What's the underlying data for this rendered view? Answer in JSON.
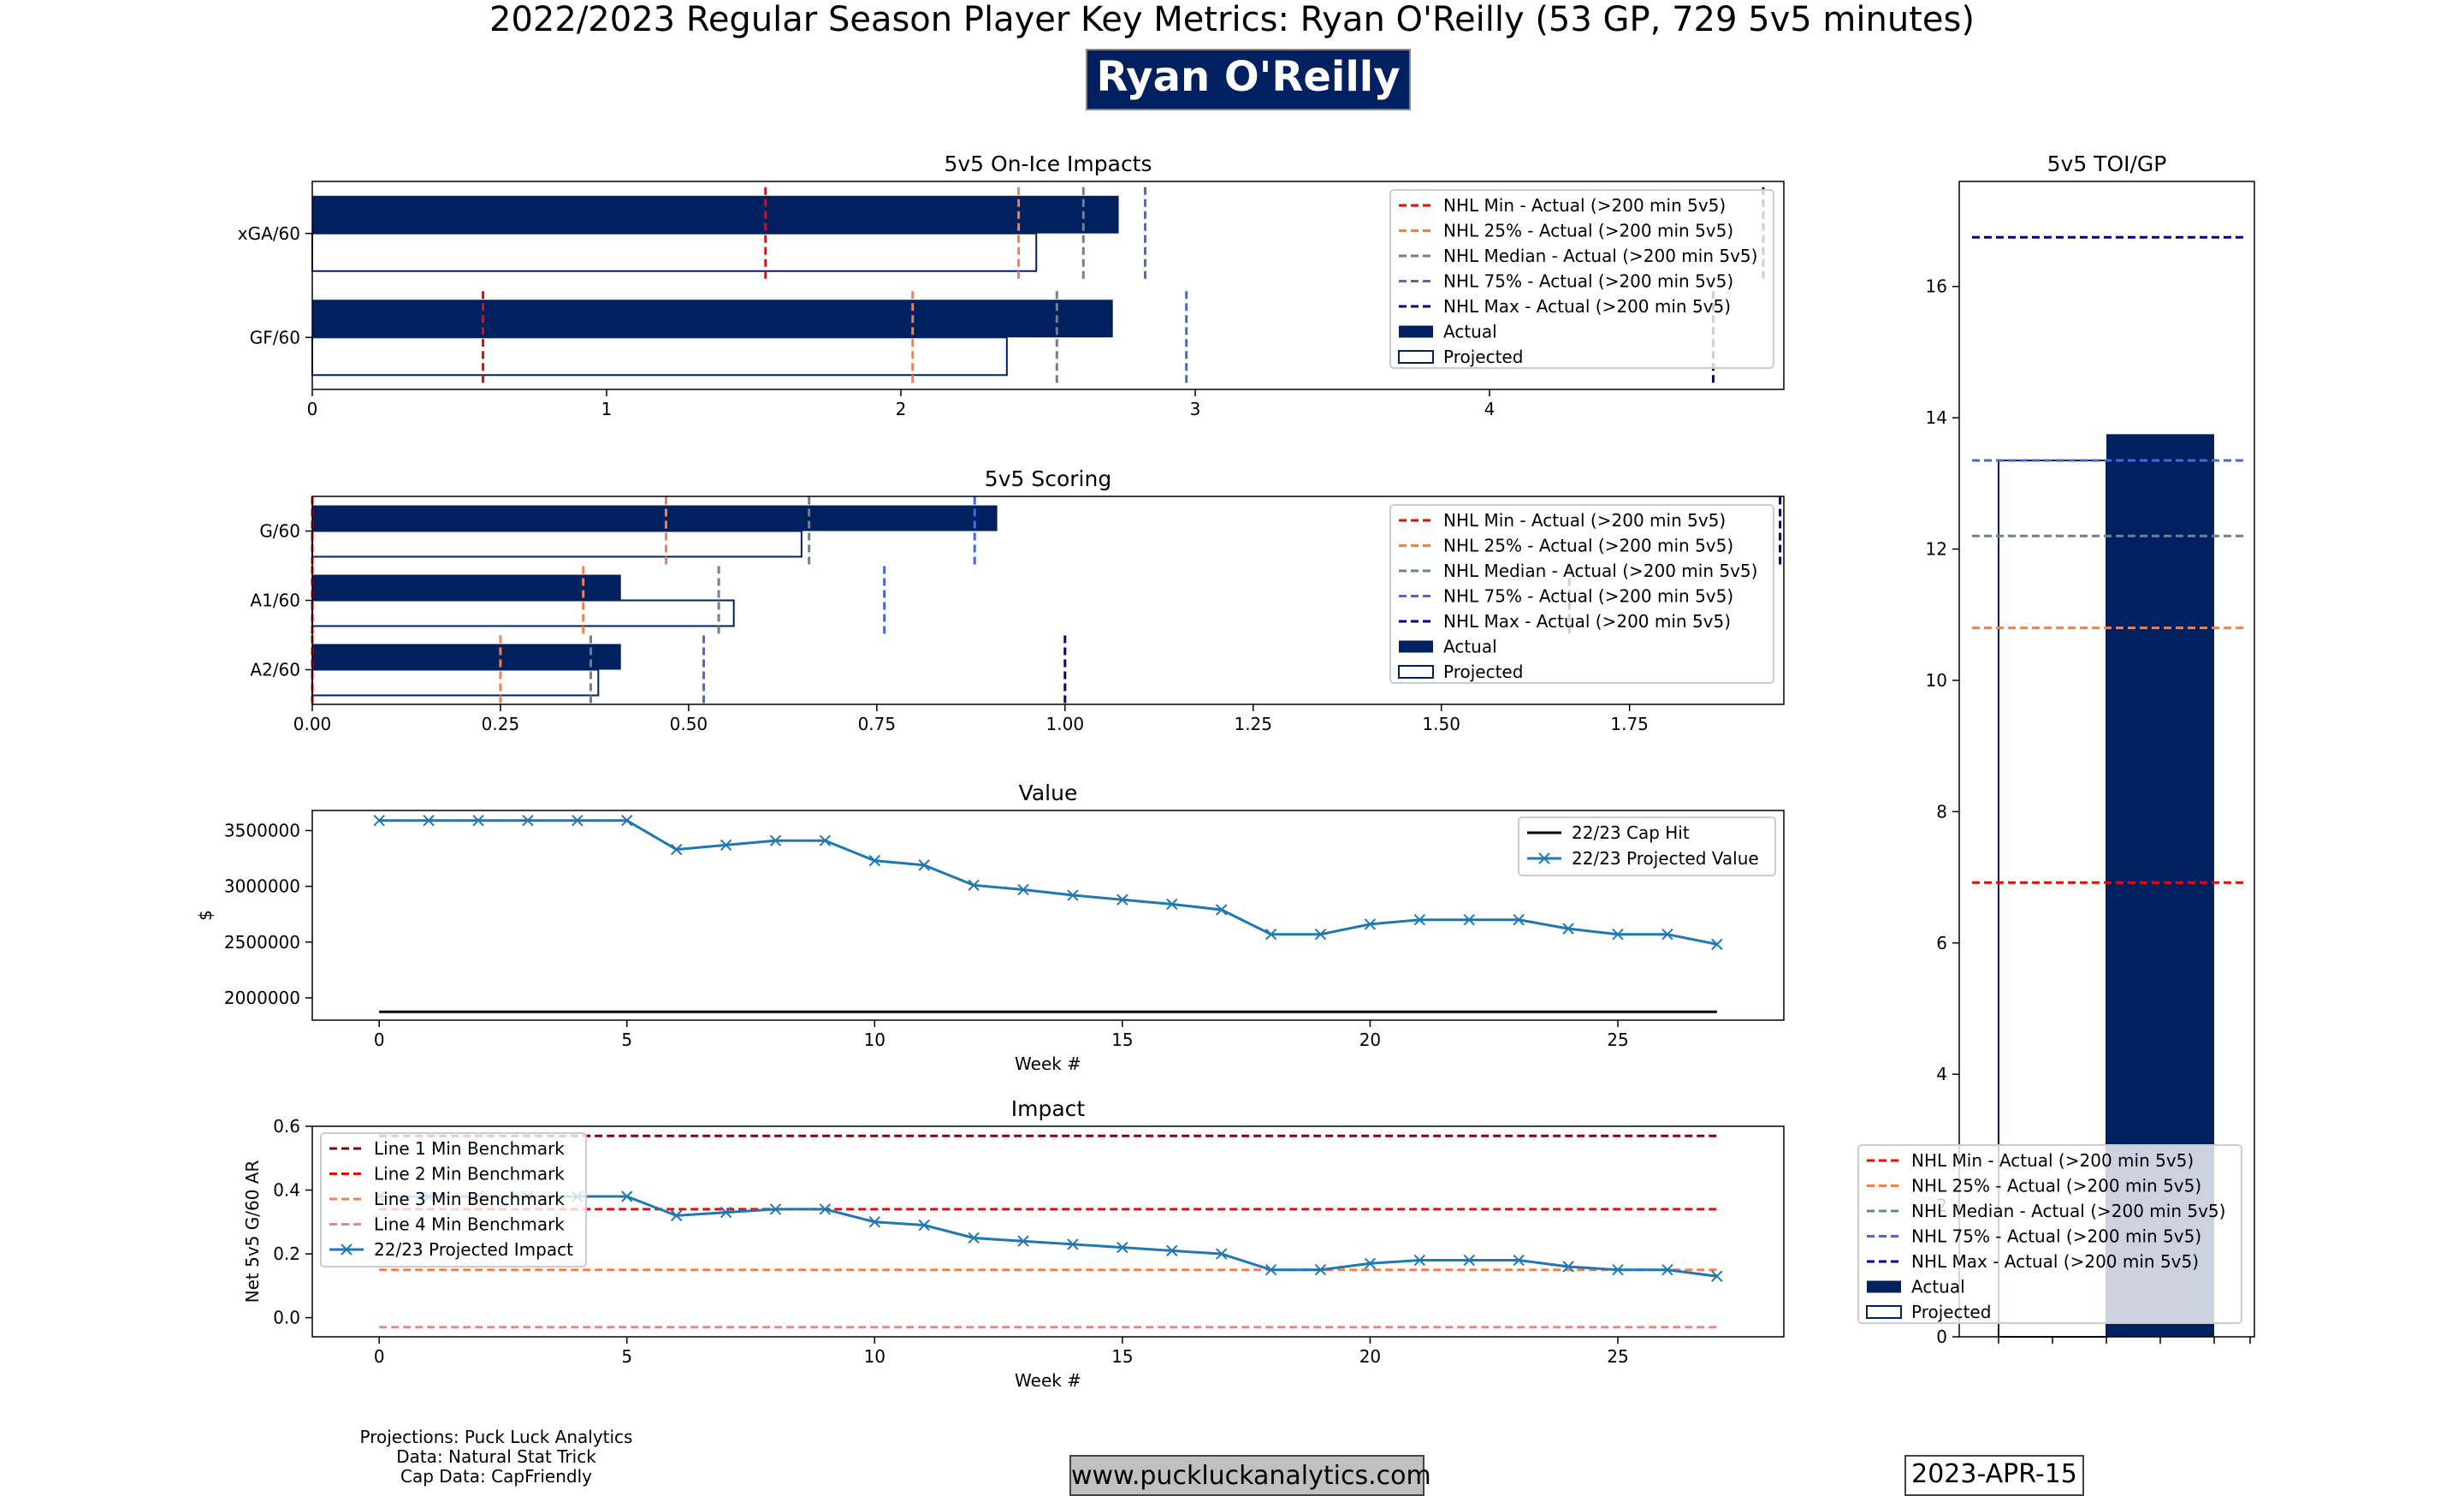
{
  "header": {
    "title": "2022/2023 Regular Season Player Key Metrics: Ryan O'Reilly (53 GP, 729 5v5 minutes)",
    "player_name": "Ryan O'Reilly"
  },
  "footer": {
    "credit_projections": "Projections: Puck Luck Analytics",
    "credit_data": "Data: Natural Stat Trick",
    "credit_cap": "Cap Data: CapFriendly",
    "website": "www.puckluckanalytics.com",
    "date": "2023-APR-15"
  },
  "colors": {
    "actual": "#002060",
    "nhl_min": "#ff0000",
    "nhl_25": "#f08050",
    "nhl_median": "#708090",
    "nhl_75": "#4169e1",
    "nhl_max": "#000080",
    "value_line": "#1f77b4",
    "line1": "#8b0000",
    "line2": "#ff0000",
    "line3": "#f08050",
    "line4": "#fa8072",
    "title_bg": "#002060"
  },
  "chart_data": [
    {
      "id": "onice",
      "type": "bar",
      "orientation": "horizontal",
      "title": "5v5 On-Ice Impacts",
      "categories": [
        "xGA/60",
        "GF/60"
      ],
      "series": [
        {
          "name": "Actual",
          "values": [
            2.74,
            2.72
          ]
        },
        {
          "name": "Projected",
          "values": [
            2.46,
            2.36
          ]
        }
      ],
      "benchmarks": [
        {
          "name": "NHL Min - Actual (>200 min 5v5)",
          "values": [
            1.54,
            0.58
          ]
        },
        {
          "name": "NHL 25% - Actual (>200 min 5v5)",
          "values": [
            2.4,
            2.04
          ]
        },
        {
          "name": "NHL Median - Actual (>200 min 5v5)",
          "values": [
            2.62,
            2.53
          ]
        },
        {
          "name": "NHL 75% - Actual (>200 min 5v5)",
          "values": [
            2.83,
            2.97
          ]
        },
        {
          "name": "NHL Max - Actual (>200 min 5v5)",
          "values": [
            4.93,
            4.76
          ]
        }
      ],
      "xlim": [
        0,
        5.0
      ],
      "xticks": [
        0,
        1,
        2,
        3,
        4
      ],
      "xtick_labels": [
        "0",
        "1",
        "2",
        "3",
        "4"
      ],
      "legend": "top-right"
    },
    {
      "id": "scoring",
      "type": "bar",
      "orientation": "horizontal",
      "title": "5v5 Scoring",
      "categories": [
        "G/60",
        "A1/60",
        "A2/60"
      ],
      "series": [
        {
          "name": "Actual",
          "values": [
            0.91,
            0.41,
            0.41
          ]
        },
        {
          "name": "Projected",
          "values": [
            0.65,
            0.56,
            0.38
          ]
        }
      ],
      "benchmarks": [
        {
          "name": "NHL Min - Actual (>200 min 5v5)",
          "values": [
            0.0,
            0.0,
            0.0
          ]
        },
        {
          "name": "NHL 25% - Actual (>200 min 5v5)",
          "values": [
            0.47,
            0.36,
            0.25
          ]
        },
        {
          "name": "NHL Median - Actual (>200 min 5v5)",
          "values": [
            0.66,
            0.54,
            0.37
          ]
        },
        {
          "name": "NHL 75% - Actual (>200 min 5v5)",
          "values": [
            0.88,
            0.76,
            0.52
          ]
        },
        {
          "name": "NHL Max - Actual (>200 min 5v5)",
          "values": [
            1.95,
            1.67,
            1.0
          ]
        }
      ],
      "xlim": [
        0,
        1.955
      ],
      "xticks": [
        0,
        0.25,
        0.5,
        0.75,
        1.0,
        1.25,
        1.5,
        1.75
      ],
      "xtick_labels": [
        "0.00",
        "0.25",
        "0.50",
        "0.75",
        "1.00",
        "1.25",
        "1.50",
        "1.75"
      ],
      "legend": "top-right"
    },
    {
      "id": "value",
      "type": "line",
      "title": "Value",
      "xlabel": "Week #",
      "ylabel": "$",
      "x": [
        0,
        1,
        2,
        3,
        4,
        5,
        6,
        7,
        8,
        9,
        10,
        11,
        12,
        13,
        14,
        15,
        16,
        17,
        18,
        19,
        20,
        21,
        22,
        23,
        24,
        25,
        26,
        27
      ],
      "series": [
        {
          "name": "22/23 Cap Hit",
          "values": [
            1875000,
            1875000,
            1875000,
            1875000,
            1875000,
            1875000,
            1875000,
            1875000,
            1875000,
            1875000,
            1875000,
            1875000,
            1875000,
            1875000,
            1875000,
            1875000,
            1875000,
            1875000,
            1875000,
            1875000,
            1875000,
            1875000,
            1875000,
            1875000,
            1875000,
            1875000,
            1875000,
            1875000
          ]
        },
        {
          "name": "22/23 Projected Value",
          "values": [
            3590000,
            3590000,
            3590000,
            3590000,
            3590000,
            3590000,
            3330000,
            3370000,
            3410000,
            3410000,
            3230000,
            3190000,
            3010000,
            2970000,
            2920000,
            2880000,
            2840000,
            2790000,
            2570000,
            2570000,
            2660000,
            2700000,
            2700000,
            2700000,
            2620000,
            2570000,
            2570000,
            2480000
          ]
        }
      ],
      "xlim": [
        -1.35,
        28.35
      ],
      "ylim": [
        1800000,
        3680000
      ],
      "xticks": [
        0,
        5,
        10,
        15,
        20,
        25
      ],
      "yticks": [
        2000000,
        2500000,
        3000000,
        3500000
      ],
      "legend": "top-right"
    },
    {
      "id": "impact",
      "type": "line",
      "title": "Impact",
      "xlabel": "Week #",
      "ylabel": "Net 5v5 G/60 AR",
      "x": [
        0,
        1,
        2,
        3,
        4,
        5,
        6,
        7,
        8,
        9,
        10,
        11,
        12,
        13,
        14,
        15,
        16,
        17,
        18,
        19,
        20,
        21,
        22,
        23,
        24,
        25,
        26,
        27
      ],
      "series": [
        {
          "name": "Line 1 Min Benchmark",
          "constant": 0.57
        },
        {
          "name": "Line 2 Min Benchmark",
          "constant": 0.34
        },
        {
          "name": "Line 3 Min Benchmark",
          "constant": 0.15
        },
        {
          "name": "Line 4 Min Benchmark",
          "constant": -0.03
        },
        {
          "name": "22/23 Projected Impact",
          "values": [
            0.38,
            0.38,
            0.38,
            0.38,
            0.38,
            0.38,
            0.32,
            0.33,
            0.34,
            0.34,
            0.3,
            0.29,
            0.25,
            0.24,
            0.23,
            0.22,
            0.21,
            0.2,
            0.15,
            0.15,
            0.17,
            0.18,
            0.18,
            0.18,
            0.16,
            0.15,
            0.15,
            0.13
          ]
        }
      ],
      "xlim": [
        -1.35,
        28.35
      ],
      "ylim": [
        -0.06,
        0.6
      ],
      "xticks": [
        0,
        5,
        10,
        15,
        20,
        25
      ],
      "yticks": [
        0.0,
        0.2,
        0.4,
        0.6
      ],
      "legend": "top-left"
    },
    {
      "id": "toi",
      "type": "bar",
      "title": "5v5 TOI/GP",
      "series": [
        {
          "name": "Actual",
          "value": 13.75
        },
        {
          "name": "Projected",
          "value": 13.35
        }
      ],
      "benchmarks": [
        {
          "name": "NHL Min - Actual (>200 min 5v5)",
          "value": 6.92
        },
        {
          "name": "NHL 25% - Actual (>200 min 5v5)",
          "value": 10.8
        },
        {
          "name": "NHL Median - Actual (>200 min 5v5)",
          "value": 12.2
        },
        {
          "name": "NHL 75% - Actual (>200 min 5v5)",
          "value": 13.35
        },
        {
          "name": "NHL Max - Actual (>200 min 5v5)",
          "value": 16.75
        }
      ],
      "ylim": [
        0,
        17.6
      ],
      "yticks": [
        0,
        2,
        4,
        6,
        8,
        10,
        12,
        14,
        16
      ],
      "legend": "bottom"
    }
  ]
}
